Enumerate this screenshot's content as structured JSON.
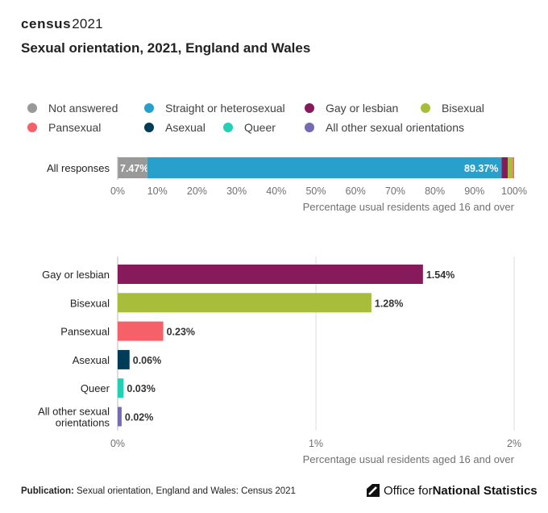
{
  "logo": {
    "word": "census",
    "year": "2021"
  },
  "title": "Sexual orientation, 2021, England and Wales",
  "legend": [
    {
      "label": "Not answered",
      "color": "#999999"
    },
    {
      "label": "Straight or heterosexual",
      "color": "#27a0cc"
    },
    {
      "label": "Gay or lesbian",
      "color": "#871a5b"
    },
    {
      "label": "Bisexual",
      "color": "#a8bd3a"
    },
    {
      "label": "Pansexual",
      "color": "#f66068"
    },
    {
      "label": "Asexual",
      "color": "#003c57"
    },
    {
      "label": "Queer",
      "color": "#22d0b6"
    },
    {
      "label": "All other sexual orientations",
      "color": "#746cb1"
    }
  ],
  "chart_data": [
    {
      "type": "bar",
      "orientation": "horizontal",
      "stacked": true,
      "categories": [
        "All responses"
      ],
      "series": [
        {
          "name": "Not answered",
          "values": [
            7.47
          ],
          "label": "7.47%",
          "color": "#999999"
        },
        {
          "name": "Straight or heterosexual",
          "values": [
            89.37
          ],
          "label": "89.37%",
          "color": "#27a0cc"
        },
        {
          "name": "Gay or lesbian",
          "values": [
            1.54
          ],
          "color": "#871a5b"
        },
        {
          "name": "Bisexual",
          "values": [
            1.28
          ],
          "color": "#a8bd3a"
        },
        {
          "name": "Pansexual",
          "values": [
            0.23
          ],
          "color": "#f66068"
        },
        {
          "name": "Asexual",
          "values": [
            0.06
          ],
          "color": "#003c57"
        },
        {
          "name": "Queer",
          "values": [
            0.03
          ],
          "color": "#22d0b6"
        },
        {
          "name": "All other sexual orientations",
          "values": [
            0.02
          ],
          "color": "#746cb1"
        }
      ],
      "xlim": [
        0,
        100
      ],
      "xticks": [
        0,
        10,
        20,
        30,
        40,
        50,
        60,
        70,
        80,
        90,
        100
      ],
      "xtick_labels": [
        "0%",
        "10%",
        "20%",
        "30%",
        "40%",
        "50%",
        "60%",
        "70%",
        "80%",
        "90%",
        "100%"
      ],
      "xlabel": "Percentage usual residents aged 16 and over",
      "grid": false
    },
    {
      "type": "bar",
      "orientation": "horizontal",
      "categories": [
        "Gay or lesbian",
        "Bisexual",
        "Pansexual",
        "Asexual",
        "Queer",
        "All other sexual orientations"
      ],
      "category_lines": [
        [
          "Gay or lesbian"
        ],
        [
          "Bisexual"
        ],
        [
          "Pansexual"
        ],
        [
          "Asexual"
        ],
        [
          "Queer"
        ],
        [
          "All other sexual",
          "orientations"
        ]
      ],
      "values": [
        1.54,
        1.28,
        0.23,
        0.06,
        0.03,
        0.02
      ],
      "value_labels": [
        "1.54%",
        "1.28%",
        "0.23%",
        "0.06%",
        "0.03%",
        "0.02%"
      ],
      "colors": [
        "#871a5b",
        "#a8bd3a",
        "#f66068",
        "#003c57",
        "#22d0b6",
        "#746cb1"
      ],
      "xlim": [
        0,
        2
      ],
      "xticks": [
        0,
        1,
        2
      ],
      "xtick_labels": [
        "0%",
        "1%",
        "2%"
      ],
      "xlabel": "Percentage usual residents aged 16 and over",
      "grid": true
    }
  ],
  "footer": {
    "publication_label": "Publication:",
    "publication_text": " Sexual orientation, England and Wales: Census 2021",
    "ons_prefix": "Office for ",
    "ons_bold": "National Statistics"
  }
}
